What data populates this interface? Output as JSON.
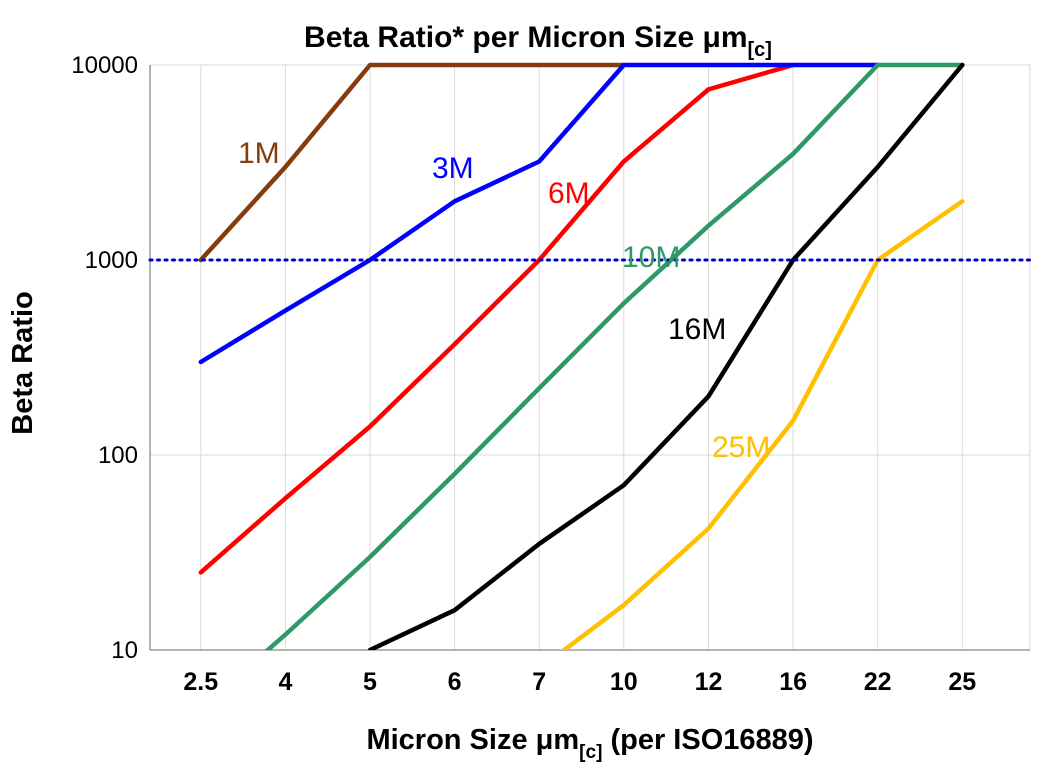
{
  "chart_data": {
    "type": "line",
    "title": {
      "main": "Beta Ratio* per Micron Size μm",
      "sub": "[c]"
    },
    "ylabel": "Beta Ratio",
    "xlabel": {
      "main": "Micron Size μm",
      "sub": "[c]",
      "suffix": " (per ISO16889)"
    },
    "x_categories": [
      "2.5",
      "4",
      "5",
      "6",
      "7",
      "10",
      "12",
      "16",
      "22",
      "25"
    ],
    "y_ticks": [
      "10",
      "100",
      "1000",
      "10000"
    ],
    "y_range": [
      10,
      10000
    ],
    "y_scale": "log",
    "grid": true,
    "legend_position": "inline-labels",
    "reference_line": {
      "value": 1000,
      "color": "#0000CC",
      "style": "dotted"
    },
    "series": [
      {
        "name": "1M",
        "color": "#843C0C",
        "values": [
          1000,
          3000,
          10000,
          10000,
          10000,
          10000,
          null,
          null,
          null,
          null
        ]
      },
      {
        "name": "3M",
        "color": "#0000FF",
        "values": [
          300,
          550,
          1000,
          2000,
          3200,
          10000,
          10000,
          10000,
          10000,
          null
        ]
      },
      {
        "name": "6M",
        "color": "#FF0000",
        "values": [
          25,
          60,
          140,
          370,
          1000,
          3200,
          7500,
          10000,
          null,
          null
        ]
      },
      {
        "name": "10M",
        "color": "#2E9966",
        "values": [
          5,
          12,
          30,
          80,
          220,
          600,
          1500,
          3500,
          10000,
          10000
        ]
      },
      {
        "name": "16M",
        "color": "#000000",
        "values": [
          null,
          null,
          10,
          16,
          35,
          70,
          200,
          1000,
          3000,
          10000
        ]
      },
      {
        "name": "25M",
        "color": "#FFC000",
        "values": [
          null,
          null,
          null,
          null,
          8,
          17,
          42,
          150,
          1000,
          2000
        ]
      }
    ]
  }
}
